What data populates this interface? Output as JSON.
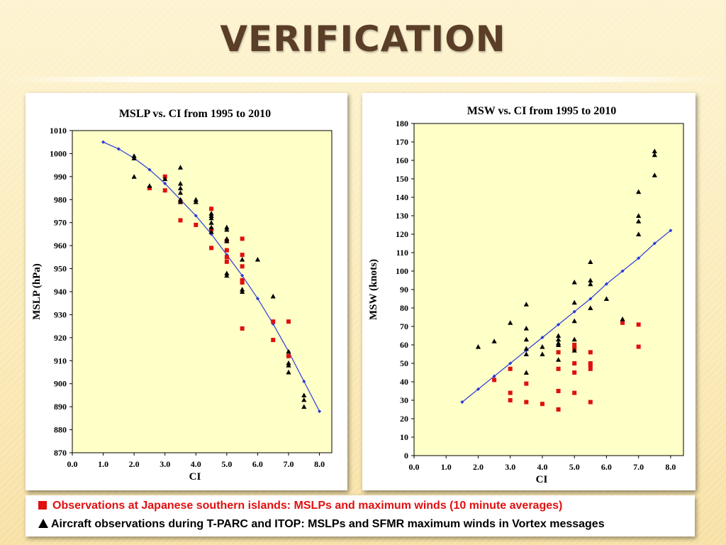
{
  "slide": {
    "title": "VERIFICATION"
  },
  "colors": {
    "series_red": "#e01010",
    "series_black": "#000000",
    "fit_line": "#2a3bdc",
    "plot_bg": "#ffffc8"
  },
  "legend": {
    "row1": "Observations at Japanese southern islands:  MSLPs and maximum winds (10 minute averages)",
    "row2": "Aircraft observations during T-PARC and ITOP:  MSLPs and SFMR maximum winds in Vortex messages"
  },
  "chart_data": [
    {
      "type": "scatter",
      "title": "MSLP vs. CI from 1995 to 2010",
      "xlabel": "CI",
      "ylabel": "MSLP  (hPa)",
      "xlim": [
        0,
        8.4
      ],
      "ylim": [
        870,
        1010
      ],
      "xticks": [
        "0.0",
        "1.0",
        "2.0",
        "3.0",
        "4.0",
        "5.0",
        "6.0",
        "7.0",
        "8.0"
      ],
      "yticks": [
        "870",
        "880",
        "890",
        "900",
        "910",
        "920",
        "930",
        "940",
        "950",
        "960",
        "970",
        "980",
        "990",
        "1000",
        "1010"
      ],
      "series": [
        {
          "marker": "line",
          "points": [
            [
              1.0,
              1005
            ],
            [
              1.5,
              1002
            ],
            [
              2.0,
              998
            ],
            [
              2.5,
              993
            ],
            [
              3.0,
              987
            ],
            [
              3.5,
              980
            ],
            [
              4.0,
              973
            ],
            [
              4.5,
              965
            ],
            [
              5.0,
              956
            ],
            [
              5.5,
              947
            ],
            [
              6.0,
              937
            ],
            [
              6.5,
              926
            ],
            [
              7.0,
              914
            ],
            [
              7.5,
              901
            ],
            [
              8.0,
              888
            ]
          ]
        },
        {
          "marker": "square",
          "points": [
            [
              2.5,
              985
            ],
            [
              3.0,
              990
            ],
            [
              3.0,
              984
            ],
            [
              3.5,
              979
            ],
            [
              3.5,
              971
            ],
            [
              4.0,
              969
            ],
            [
              4.5,
              976
            ],
            [
              4.5,
              967
            ],
            [
              4.5,
              959
            ],
            [
              5.0,
              962
            ],
            [
              5.0,
              958
            ],
            [
              5.0,
              955
            ],
            [
              5.0,
              953
            ],
            [
              5.5,
              963
            ],
            [
              5.5,
              956
            ],
            [
              5.5,
              951
            ],
            [
              5.5,
              945
            ],
            [
              5.5,
              944
            ],
            [
              5.5,
              924
            ],
            [
              6.5,
              927
            ],
            [
              6.5,
              919
            ],
            [
              7.0,
              927
            ],
            [
              7.0,
              912
            ]
          ]
        },
        {
          "marker": "triangle",
          "points": [
            [
              2.0,
              999
            ],
            [
              2.0,
              998
            ],
            [
              2.0,
              990
            ],
            [
              2.5,
              986
            ],
            [
              3.0,
              989
            ],
            [
              3.5,
              994
            ],
            [
              3.5,
              987
            ],
            [
              3.5,
              985
            ],
            [
              3.5,
              983
            ],
            [
              3.5,
              980
            ],
            [
              3.5,
              979
            ],
            [
              4.0,
              980
            ],
            [
              4.0,
              979
            ],
            [
              4.5,
              974
            ],
            [
              4.5,
              973
            ],
            [
              4.5,
              972
            ],
            [
              4.5,
              970
            ],
            [
              4.5,
              968
            ],
            [
              4.5,
              966
            ],
            [
              5.0,
              968
            ],
            [
              5.0,
              967
            ],
            [
              5.0,
              963
            ],
            [
              5.0,
              962
            ],
            [
              5.0,
              948
            ],
            [
              5.0,
              947
            ],
            [
              5.5,
              954
            ],
            [
              5.5,
              941
            ],
            [
              5.5,
              940
            ],
            [
              6.0,
              954
            ],
            [
              6.5,
              938
            ],
            [
              7.0,
              914
            ],
            [
              7.0,
              909
            ],
            [
              7.0,
              908
            ],
            [
              7.0,
              905
            ],
            [
              7.5,
              895
            ],
            [
              7.5,
              893
            ],
            [
              7.5,
              890
            ]
          ]
        }
      ]
    },
    {
      "type": "scatter",
      "title": "MSW vs. CI  from 1995 to 2010",
      "xlabel": "CI",
      "ylabel": "MSW (knots)",
      "xlim": [
        0,
        8.4
      ],
      "ylim": [
        0,
        180
      ],
      "xticks": [
        "0.0",
        "1.0",
        "2.0",
        "3.0",
        "4.0",
        "5.0",
        "6.0",
        "7.0",
        "8.0"
      ],
      "yticks": [
        "0",
        "10",
        "20",
        "30",
        "40",
        "50",
        "60",
        "70",
        "80",
        "90",
        "100",
        "110",
        "120",
        "130",
        "140",
        "150",
        "160",
        "170",
        "180"
      ],
      "series": [
        {
          "marker": "line",
          "points": [
            [
              1.5,
              29
            ],
            [
              2.0,
              36
            ],
            [
              2.5,
              43
            ],
            [
              3.0,
              50
            ],
            [
              3.5,
              57
            ],
            [
              4.0,
              64
            ],
            [
              4.5,
              71
            ],
            [
              5.0,
              78
            ],
            [
              5.5,
              85
            ],
            [
              6.0,
              93
            ],
            [
              6.5,
              100
            ],
            [
              7.0,
              107
            ],
            [
              7.5,
              115
            ],
            [
              8.0,
              122
            ]
          ]
        },
        {
          "marker": "square",
          "points": [
            [
              2.5,
              41
            ],
            [
              3.0,
              47
            ],
            [
              3.0,
              34
            ],
            [
              3.0,
              30
            ],
            [
              3.5,
              39
            ],
            [
              3.5,
              29
            ],
            [
              4.0,
              28
            ],
            [
              4.5,
              56
            ],
            [
              4.5,
              47
            ],
            [
              4.5,
              35
            ],
            [
              4.5,
              25
            ],
            [
              5.0,
              60
            ],
            [
              5.0,
              58
            ],
            [
              5.0,
              50
            ],
            [
              5.0,
              45
            ],
            [
              5.0,
              34
            ],
            [
              5.5,
              56
            ],
            [
              5.5,
              50
            ],
            [
              5.5,
              49
            ],
            [
              5.5,
              47
            ],
            [
              5.5,
              29
            ],
            [
              6.5,
              72
            ],
            [
              7.0,
              71
            ],
            [
              7.0,
              59
            ]
          ]
        },
        {
          "marker": "triangle",
          "points": [
            [
              2.0,
              59
            ],
            [
              2.5,
              62
            ],
            [
              3.0,
              72
            ],
            [
              3.5,
              82
            ],
            [
              3.5,
              69
            ],
            [
              3.5,
              63
            ],
            [
              3.5,
              58
            ],
            [
              3.5,
              55
            ],
            [
              3.5,
              45
            ],
            [
              4.0,
              59
            ],
            [
              4.0,
              55
            ],
            [
              4.5,
              65
            ],
            [
              4.5,
              63
            ],
            [
              4.5,
              61
            ],
            [
              4.5,
              60
            ],
            [
              4.5,
              52
            ],
            [
              5.0,
              94
            ],
            [
              5.0,
              83
            ],
            [
              5.0,
              73
            ],
            [
              5.0,
              63
            ],
            [
              5.0,
              57
            ],
            [
              5.5,
              105
            ],
            [
              5.5,
              95
            ],
            [
              5.5,
              93
            ],
            [
              5.5,
              80
            ],
            [
              6.0,
              85
            ],
            [
              6.5,
              74
            ],
            [
              7.0,
              143
            ],
            [
              7.0,
              130
            ],
            [
              7.0,
              127
            ],
            [
              7.0,
              120
            ],
            [
              7.5,
              165
            ],
            [
              7.5,
              163
            ],
            [
              7.5,
              152
            ]
          ]
        }
      ]
    }
  ]
}
